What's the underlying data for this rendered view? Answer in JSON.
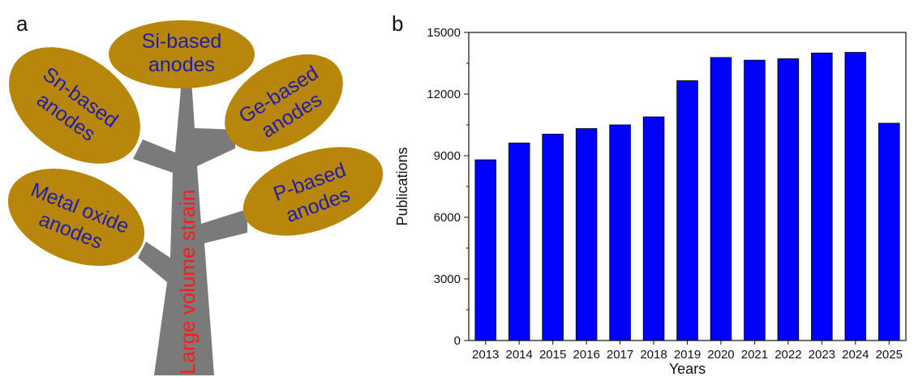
{
  "panel_a": {
    "label": "a",
    "trunk_text": "Large volume strain",
    "leaf_color": "#b8860b",
    "trunk_color": "#7a7a7a",
    "leaves": [
      {
        "name": "si",
        "lines": [
          "Si-based",
          "anodes"
        ]
      },
      {
        "name": "sn",
        "lines": [
          "Sn-based",
          "anodes"
        ]
      },
      {
        "name": "ge",
        "lines": [
          "Ge-based",
          "anodes"
        ]
      },
      {
        "name": "p",
        "lines": [
          "P-based",
          "anodes"
        ]
      },
      {
        "name": "metal-oxide",
        "lines": [
          "Metal oxide",
          "anodes"
        ]
      }
    ]
  },
  "panel_b": {
    "label": "b"
  },
  "chart_data": {
    "type": "bar",
    "categories": [
      "2013",
      "2014",
      "2015",
      "2016",
      "2017",
      "2018",
      "2019",
      "2020",
      "2021",
      "2022",
      "2023",
      "2024",
      "2025"
    ],
    "values": [
      8800,
      9620,
      10050,
      10320,
      10500,
      10890,
      12650,
      13780,
      13650,
      13720,
      14000,
      14030,
      10580
    ],
    "xlabel": "Years",
    "ylabel": "Publications",
    "ylim": [
      0,
      15000
    ],
    "yticks": [
      0,
      3000,
      6000,
      9000,
      12000,
      15000
    ],
    "bar_color": "#0000ff",
    "grid": false
  }
}
